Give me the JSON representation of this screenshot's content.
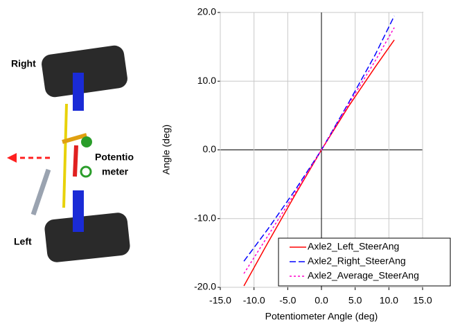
{
  "diagram": {
    "right_label": "Right",
    "left_label": "Left",
    "potentiometer_label": [
      "Potentio",
      "meter"
    ]
  },
  "chart_data": {
    "type": "line",
    "x_label": "Potentiometer Angle (deg)",
    "y_label": "Angle (deg)",
    "x": [
      -11.5,
      -8,
      -4,
      0,
      4,
      8,
      10.8
    ],
    "series": [
      {
        "name": "Axle2_Left_SteerAng",
        "color": "#ff0000",
        "linestyle": "solid",
        "values": [
          -19.8,
          -13.6,
          -6.7,
          0,
          6.3,
          12.1,
          16.0
        ]
      },
      {
        "name": "Axle2_Right_SteerAng",
        "color": "#0000ff",
        "linestyle": "dashed",
        "values": [
          -16.2,
          -11.6,
          -6.0,
          0,
          6.8,
          13.9,
          19.5
        ]
      },
      {
        "name": "Axle2_Average_SteerAng",
        "color": "#ff00cc",
        "linestyle": "dotted",
        "values": [
          -18.0,
          -12.6,
          -6.4,
          0,
          6.6,
          13.0,
          17.8
        ]
      }
    ],
    "xlim": [
      -15,
      15
    ],
    "ylim": [
      -20,
      20
    ],
    "xticks": [
      {
        "value": -15,
        "label": "-15.0"
      },
      {
        "value": -10,
        "label": "-10.0"
      },
      {
        "value": -5,
        "label": "-5.0"
      },
      {
        "value": 0,
        "label": "0.0"
      },
      {
        "value": 5,
        "label": "5.0"
      },
      {
        "value": 10,
        "label": "10.0"
      },
      {
        "value": 15,
        "label": "15.0"
      }
    ],
    "yticks": [
      {
        "value": -20,
        "label": "-20.0"
      },
      {
        "value": -10,
        "label": "-10.0"
      },
      {
        "value": 0,
        "label": "0.0"
      },
      {
        "value": 10,
        "label": "10.0"
      },
      {
        "value": 20,
        "label": "20.0"
      }
    ],
    "grid": true,
    "legend": "lower right"
  }
}
